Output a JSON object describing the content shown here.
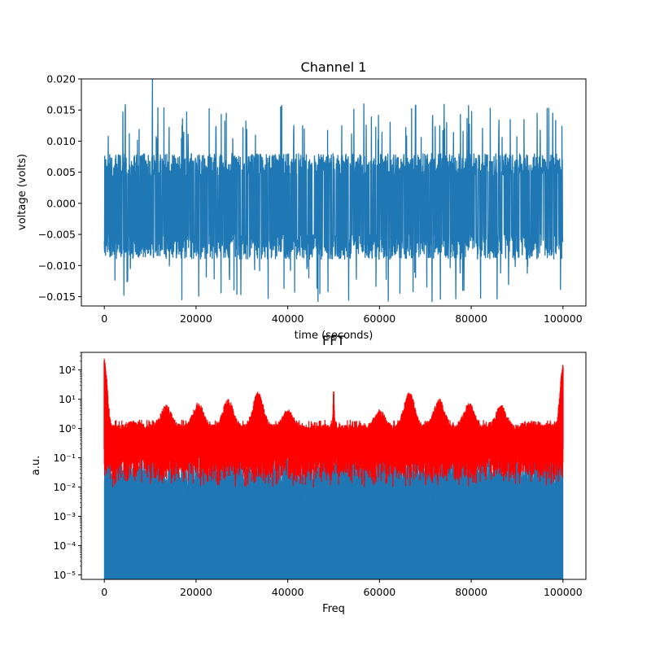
{
  "chart_data": [
    {
      "type": "line",
      "title": "Channel 1",
      "xlabel": "time (seconds)",
      "ylabel": "voltage (volts)",
      "xlim": [
        -5000,
        105000
      ],
      "ylim": [
        -0.0165,
        0.02
      ],
      "x_ticks": [
        0,
        20000,
        40000,
        60000,
        80000,
        100000
      ],
      "x_tick_labels": [
        "0",
        "20000",
        "40000",
        "60000",
        "80000",
        "100000"
      ],
      "y_ticks": [
        -0.015,
        -0.01,
        -0.005,
        0.0,
        0.005,
        0.01,
        0.015,
        0.02
      ],
      "y_tick_labels": [
        "−0.015",
        "−0.010",
        "−0.005",
        "0.000",
        "0.005",
        "0.010",
        "0.015",
        "0.020"
      ],
      "grid": false,
      "series": [
        {
          "color": "#1f77b4",
          "x_range": [
            0,
            100000
          ],
          "y_min": -0.0145,
          "y_max": 0.02,
          "y_typical_band": [
            -0.009,
            0.008
          ]
        }
      ]
    },
    {
      "type": "area",
      "title": "FFT",
      "xlabel": "Freq",
      "ylabel": "a.u.",
      "xlim": [
        -5000,
        105000
      ],
      "ylim": [
        7e-06,
        400
      ],
      "yscale": "log",
      "x_ticks": [
        0,
        20000,
        40000,
        60000,
        80000,
        100000
      ],
      "x_tick_labels": [
        "0",
        "20000",
        "40000",
        "60000",
        "80000",
        "100000"
      ],
      "y_ticks": [
        1e-05,
        0.0001,
        0.001,
        0.01,
        0.1,
        1,
        10,
        100
      ],
      "y_tick_labels": [
        "10⁻⁵",
        "10⁻⁴",
        "10⁻³",
        "10⁻²",
        "10⁻¹",
        "10⁰",
        "10¹",
        "10²"
      ],
      "grid": false,
      "series": [
        {
          "color": "#ff0000",
          "style": "line",
          "x_range": [
            0,
            100000
          ],
          "baseline_band": [
            0.15,
            2.0
          ],
          "min_dips": 0.002,
          "peaks": [
            {
              "x": 0,
              "y": 200
            },
            {
              "x": 6500,
              "y": 1.5
            },
            {
              "x": 13500,
              "y": 5
            },
            {
              "x": 20500,
              "y": 6
            },
            {
              "x": 27000,
              "y": 8
            },
            {
              "x": 33500,
              "y": 14
            },
            {
              "x": 40000,
              "y": 3.5
            },
            {
              "x": 50000,
              "y": 18
            },
            {
              "x": 60000,
              "y": 3.5
            },
            {
              "x": 66500,
              "y": 14
            },
            {
              "x": 73000,
              "y": 8
            },
            {
              "x": 79500,
              "y": 6
            },
            {
              "x": 86500,
              "y": 5
            },
            {
              "x": 93500,
              "y": 1.5
            },
            {
              "x": 100000,
              "y": 120
            }
          ]
        },
        {
          "color": "#1f77b4",
          "style": "fill",
          "x_range": [
            0,
            100000
          ],
          "top_band": [
            0.01,
            0.1
          ]
        }
      ]
    }
  ]
}
